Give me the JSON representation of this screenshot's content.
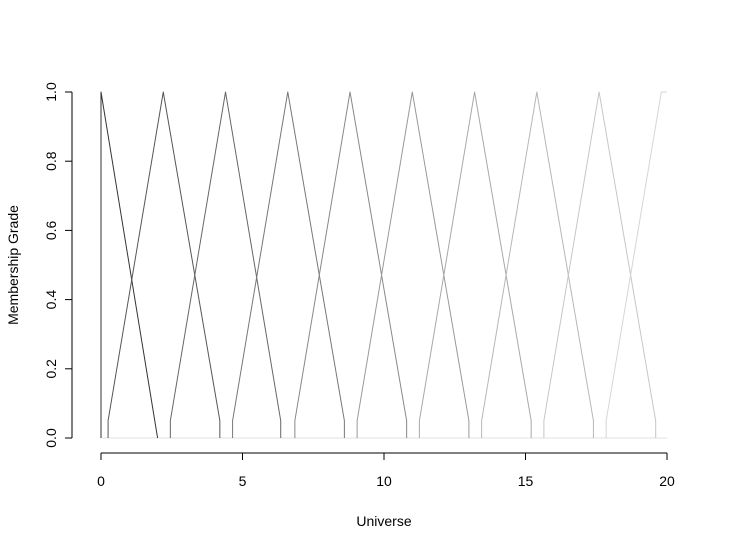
{
  "chart_data": {
    "type": "line",
    "title": "",
    "xlabel": "Universe",
    "ylabel": "Membership Grade",
    "xlim": [
      0,
      20
    ],
    "ylim": [
      0,
      1
    ],
    "x_ticks": [
      0,
      5,
      10,
      15,
      20
    ],
    "x_tick_labels": [
      "0",
      "5",
      "10",
      "15",
      "20"
    ],
    "y_ticks": [
      0.0,
      0.2,
      0.4,
      0.6,
      0.8,
      1.0
    ],
    "y_tick_labels": [
      "0.0",
      "0.2",
      "0.4",
      "0.6",
      "0.8",
      "1.0"
    ],
    "grid": false,
    "legend": "none",
    "baseline": {
      "x": [
        0,
        20
      ],
      "y": [
        0,
        0
      ],
      "color": "#e0e0e0"
    },
    "series": [
      {
        "x": [
          0.0,
          0.0,
          2.0,
          2.0
        ],
        "y": [
          0,
          1.0,
          0,
          0
        ],
        "color": "#333333"
      },
      {
        "x": [
          0.25,
          0.25,
          2.2,
          4.2,
          4.2
        ],
        "y": [
          0,
          0.05,
          1.0,
          0.05,
          0
        ],
        "color": "#555555"
      },
      {
        "x": [
          2.45,
          2.45,
          4.4,
          6.35,
          6.35
        ],
        "y": [
          0,
          0.05,
          1.0,
          0.05,
          0
        ],
        "color": "#666666"
      },
      {
        "x": [
          4.65,
          4.65,
          6.6,
          8.6,
          8.6
        ],
        "y": [
          0,
          0.05,
          1.0,
          0.05,
          0
        ],
        "color": "#777777"
      },
      {
        "x": [
          6.85,
          6.85,
          8.8,
          10.8,
          10.8
        ],
        "y": [
          0,
          0.05,
          1.0,
          0.05,
          0
        ],
        "color": "#888888"
      },
      {
        "x": [
          9.05,
          9.05,
          11.0,
          13.0,
          13.0
        ],
        "y": [
          0,
          0.05,
          1.0,
          0.05,
          0
        ],
        "color": "#999999"
      },
      {
        "x": [
          11.25,
          11.25,
          13.2,
          15.2,
          15.2
        ],
        "y": [
          0,
          0.05,
          1.0,
          0.05,
          0
        ],
        "color": "#a8a8a8"
      },
      {
        "x": [
          13.45,
          13.45,
          15.4,
          17.4,
          17.4
        ],
        "y": [
          0,
          0.05,
          1.0,
          0.05,
          0
        ],
        "color": "#b7b7b7"
      },
      {
        "x": [
          15.65,
          15.65,
          17.6,
          19.6,
          19.6
        ],
        "y": [
          0,
          0.05,
          1.0,
          0.05,
          0
        ],
        "color": "#c6c6c6"
      },
      {
        "x": [
          17.85,
          17.85,
          19.8,
          20.0
        ],
        "y": [
          0,
          0.05,
          1.0,
          1.0
        ],
        "color": "#d6d6d6"
      }
    ]
  }
}
